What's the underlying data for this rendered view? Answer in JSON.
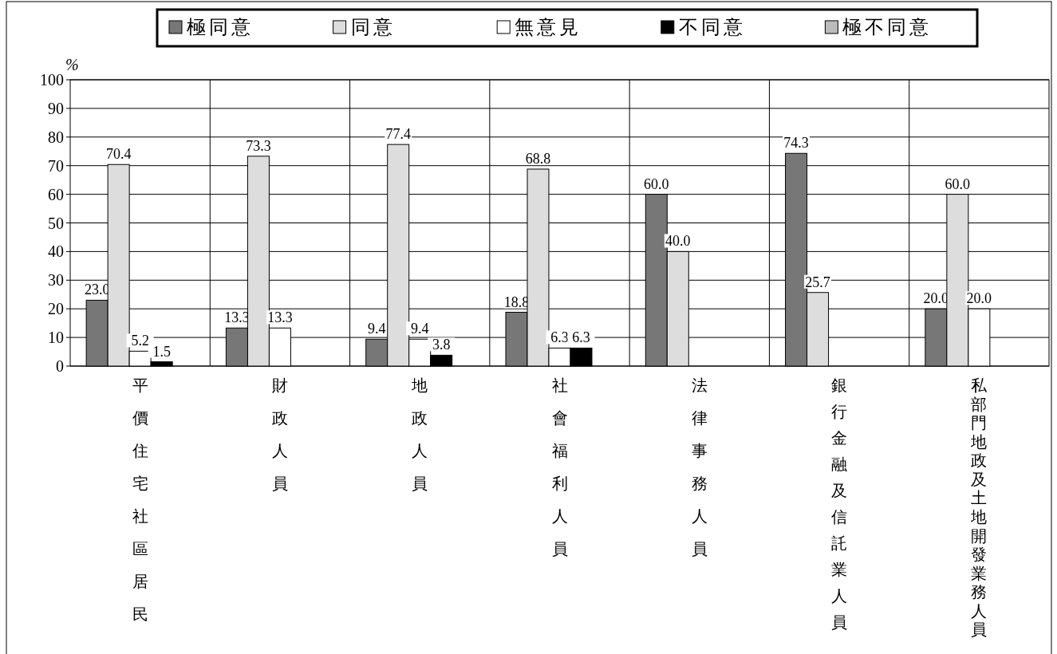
{
  "chart_data": {
    "type": "bar",
    "ylabel": "%",
    "categories": [
      "平價住宅社區居民",
      "財政人員",
      "地政人員",
      "社會福利人員",
      "法律事務人員",
      "銀行金融及信託業人員",
      "私部門地政及土地開發業務人員"
    ],
    "series": [
      {
        "name": "極同意",
        "color": "#777777",
        "values": [
          23.0,
          13.3,
          9.4,
          18.8,
          60.0,
          74.3,
          20.0
        ],
        "value_labels": [
          "23.0",
          "13.3",
          "9.4",
          "18.8",
          "60.0",
          "74.3",
          "20.0"
        ]
      },
      {
        "name": "同意",
        "color": "#dddddd",
        "values": [
          70.4,
          73.3,
          77.4,
          68.8,
          40.0,
          25.7,
          60.0
        ],
        "value_labels": [
          "70.4",
          "73.3",
          "77.4",
          "68.8",
          "40.0",
          "25.7",
          "60.0"
        ]
      },
      {
        "name": "無意見",
        "color": "#ffffff",
        "values": [
          5.2,
          13.3,
          9.4,
          6.3,
          null,
          null,
          20.0
        ],
        "value_labels": [
          "5.2",
          "13.3",
          "9.4",
          "6.3",
          null,
          null,
          "20.0"
        ]
      },
      {
        "name": "不同意",
        "color": "#000000",
        "values": [
          1.5,
          null,
          3.8,
          6.3,
          null,
          null,
          null
        ],
        "value_labels": [
          "1.5",
          null,
          "3.8",
          "6.3",
          null,
          null,
          null
        ]
      },
      {
        "name": "極不同意",
        "color": "#bbbbbb",
        "values": [
          null,
          null,
          null,
          null,
          null,
          null,
          null
        ]
      }
    ],
    "ylim": [
      0,
      100
    ],
    "yticks": [
      0,
      10,
      20,
      30,
      40,
      50,
      60,
      70,
      80,
      90,
      100
    ],
    "grid": true,
    "legend": "top"
  }
}
